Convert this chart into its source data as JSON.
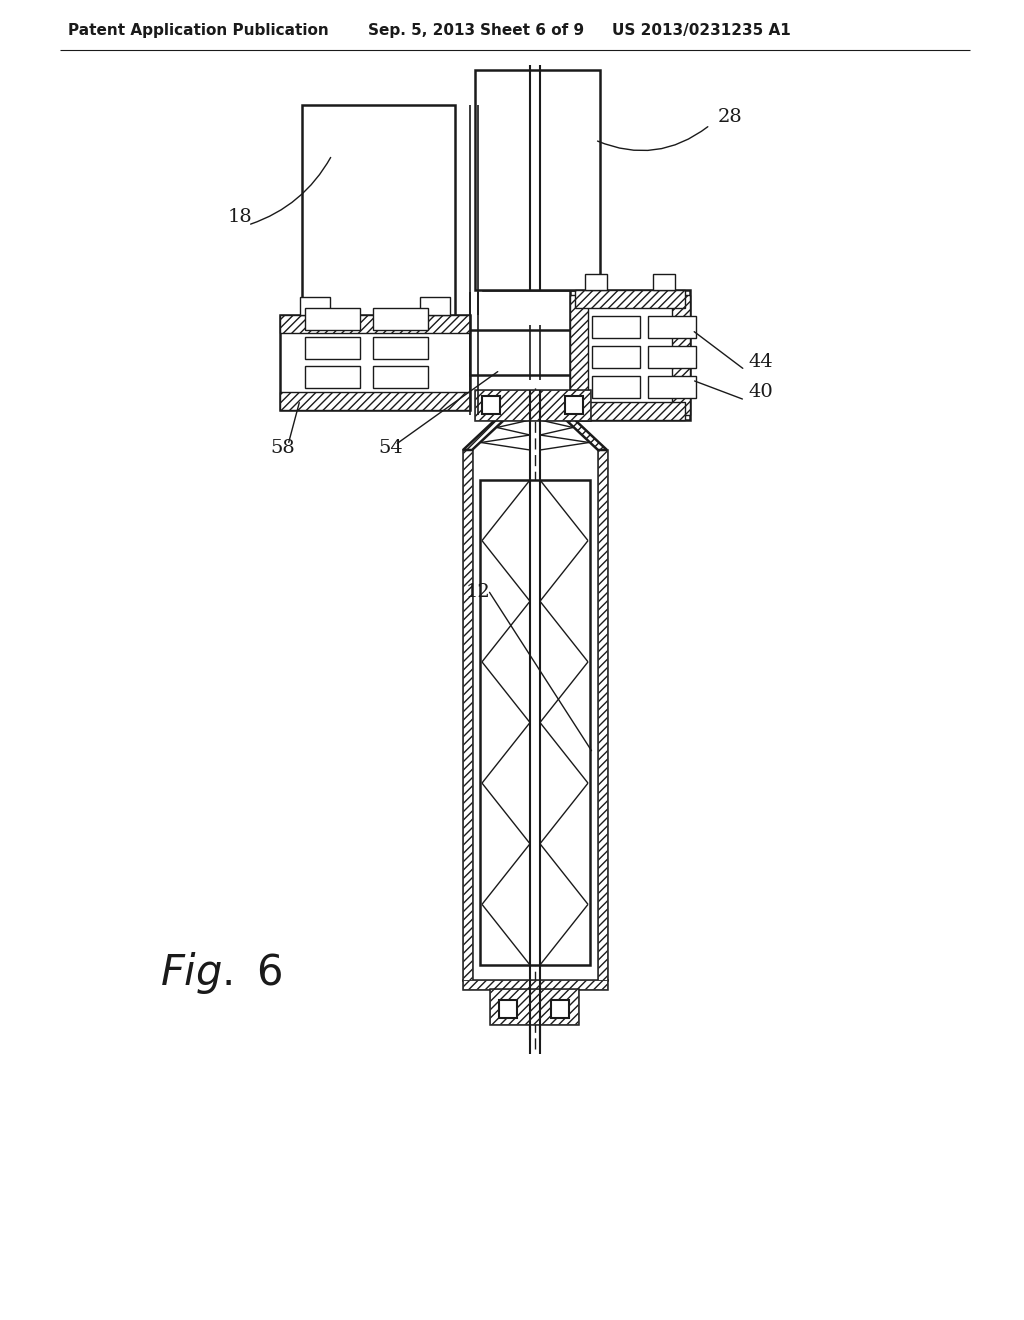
{
  "bg_color": "#ffffff",
  "lc": "#1a1a1a",
  "header_text": "Patent Application Publication",
  "header_date": "Sep. 5, 2013",
  "header_sheet": "Sheet 6 of 9",
  "header_patent": "US 2013/0231235 A1",
  "fig_label": "Fig. 6"
}
